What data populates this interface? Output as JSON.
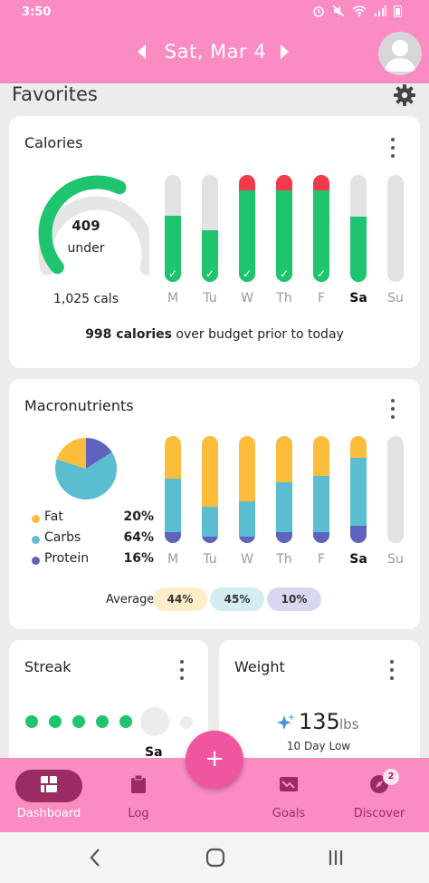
{
  "status_bar": {
    "time": "3:50"
  },
  "header": {
    "date": "Sat, Mar 4"
  },
  "favorites": {
    "title": "Favorites"
  },
  "calories": {
    "title": "Calories",
    "gauge_value": "409",
    "gauge_label": "under",
    "gauge_fraction": 0.6,
    "total": "1,025 cals",
    "budget_bold": "998 calories",
    "budget_rest": " over budget prior to today",
    "days": [
      "M",
      "Tu",
      "W",
      "Th",
      "F",
      "Sa",
      "Su"
    ],
    "bars": [
      {
        "fill": 0.62,
        "over": 0,
        "check": true
      },
      {
        "fill": 0.48,
        "over": 0,
        "check": true
      },
      {
        "fill": 0.86,
        "over": 0.14,
        "check": true
      },
      {
        "fill": 0.86,
        "over": 0.14,
        "check": true
      },
      {
        "fill": 0.86,
        "over": 0.14,
        "check": true
      },
      {
        "fill": 0.61,
        "over": 0,
        "check": false
      },
      {
        "fill": 0,
        "over": 0,
        "check": false
      }
    ],
    "colors": {
      "green": "#1fc46e",
      "red": "#f23a4b",
      "track": "#e2e2e2"
    }
  },
  "macros": {
    "title": "Macronutrients",
    "legend": [
      {
        "name": "Fat",
        "pct": "20%",
        "value": 20,
        "color": "#fcbd3c"
      },
      {
        "name": "Carbs",
        "pct": "64%",
        "value": 64,
        "color": "#5bbdd0"
      },
      {
        "name": "Protein",
        "pct": "16%",
        "value": 16,
        "color": "#5e63bd"
      }
    ],
    "days": [
      "M",
      "Tu",
      "W",
      "Th",
      "F",
      "Sa",
      "Su"
    ],
    "bars": [
      {
        "fat": 0.4,
        "carbs": 0.5,
        "protein": 0.1
      },
      {
        "fat": 0.66,
        "carbs": 0.28,
        "protein": 0.06
      },
      {
        "fat": 0.61,
        "carbs": 0.33,
        "protein": 0.06
      },
      {
        "fat": 0.43,
        "carbs": 0.47,
        "protein": 0.1
      },
      {
        "fat": 0.37,
        "carbs": 0.53,
        "protein": 0.1
      },
      {
        "fat": 0.2,
        "carbs": 0.64,
        "protein": 0.16
      },
      {
        "fat": 0,
        "carbs": 0,
        "protein": 0
      }
    ],
    "average_label": "Average",
    "averages": [
      {
        "value": "44%",
        "color": "#fdeec9"
      },
      {
        "value": "45%",
        "color": "#d3edf3"
      },
      {
        "value": "10%",
        "color": "#d7d8ef"
      }
    ]
  },
  "streak": {
    "title": "Streak",
    "today": "Sa",
    "done_count": 5
  },
  "weight": {
    "title": "Weight",
    "value": "135",
    "unit": "lbs",
    "sub": "10 Day Low"
  },
  "fab": {
    "label": "+"
  },
  "nav": {
    "items": [
      {
        "label": "Dashboard",
        "icon": "dashboard-icon",
        "active": true
      },
      {
        "label": "Log",
        "icon": "clipboard-icon",
        "active": false
      },
      {
        "label": "Goals",
        "icon": "goals-icon",
        "active": false
      },
      {
        "label": "Discover",
        "icon": "compass-icon",
        "active": false,
        "badge": "2"
      }
    ]
  }
}
